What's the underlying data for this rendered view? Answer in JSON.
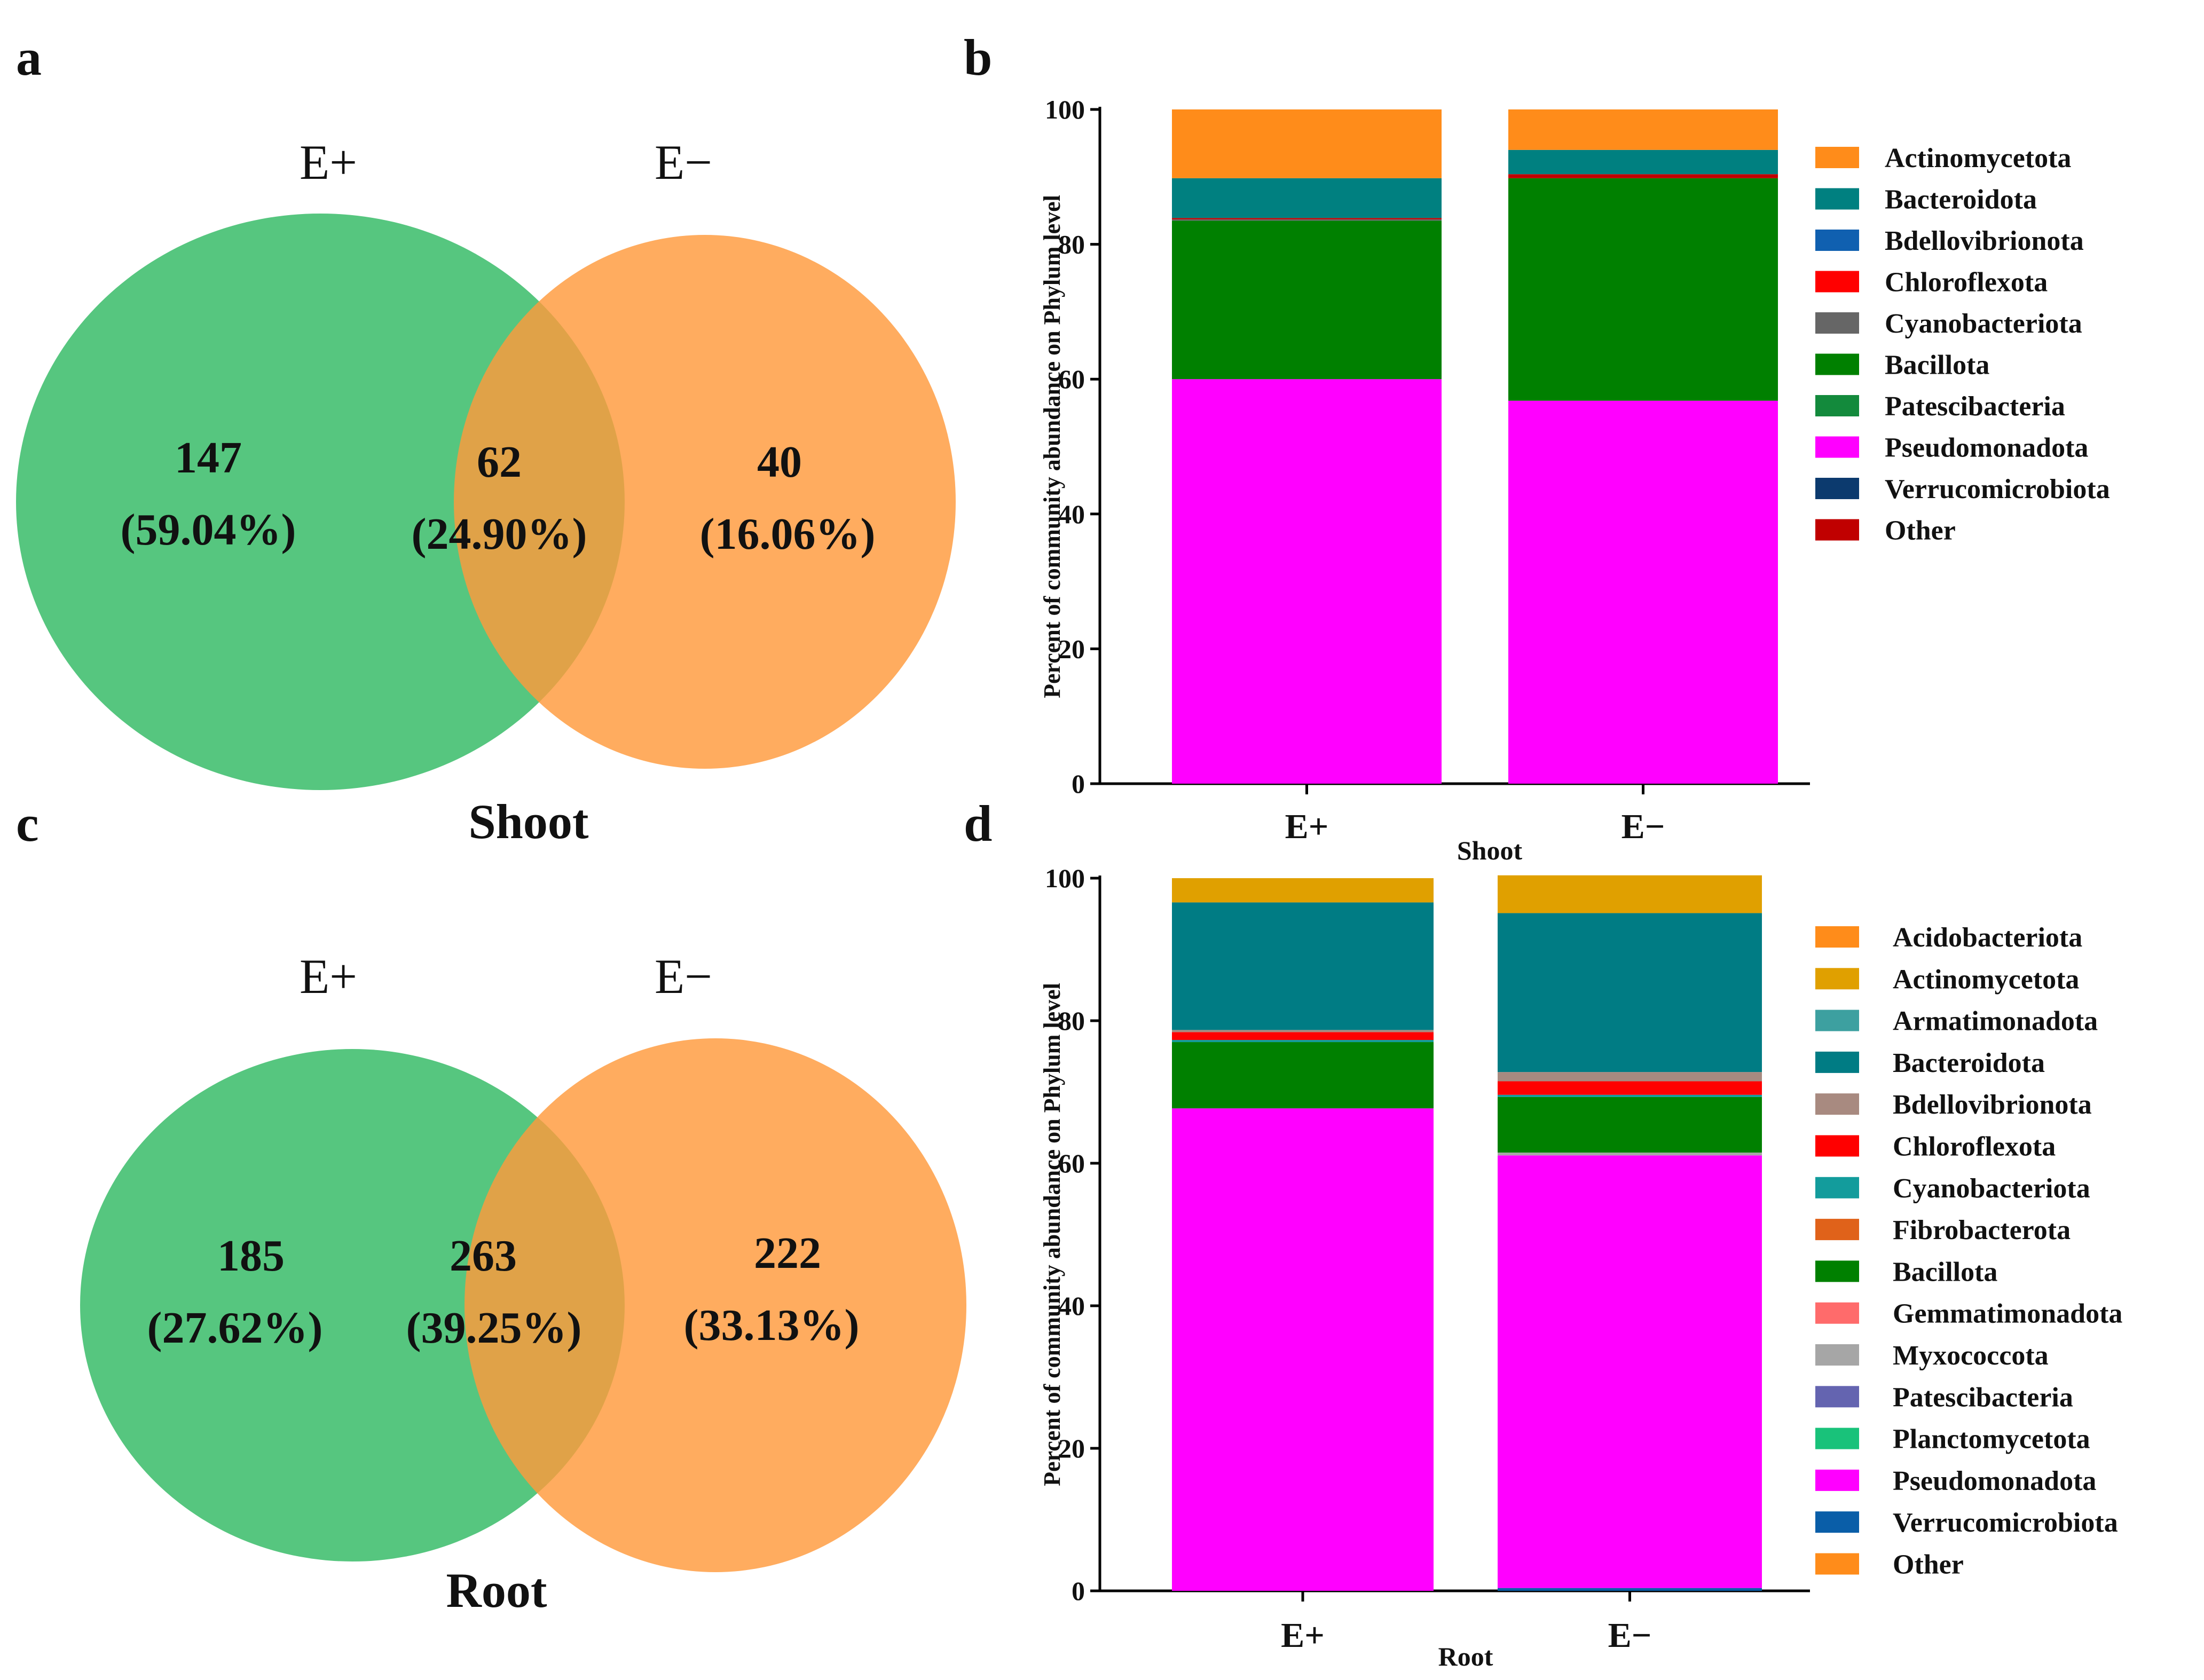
{
  "panels": {
    "a": {
      "letter": "a",
      "set_left": "E+",
      "set_right": "E−",
      "title": "Shoot",
      "left_only": {
        "count": "147",
        "pct": "(59.04%)"
      },
      "shared": {
        "count": "62",
        "pct": "(24.90%)"
      },
      "right_only": {
        "count": "40",
        "pct": "(16.06%)"
      }
    },
    "c": {
      "letter": "c",
      "set_left": "E+",
      "set_right": "E−",
      "title": "Root",
      "left_only": {
        "count": "185",
        "pct": "(27.62%)"
      },
      "shared": {
        "count": "263",
        "pct": "(39.25%)"
      },
      "right_only": {
        "count": "222",
        "pct": "(33.13%)"
      }
    }
  },
  "colors": {
    "venn_left": "#48c174",
    "venn_right": "#ff9a3c"
  },
  "chart_data": [
    {
      "panel": "b",
      "type": "bar",
      "stacked": true,
      "ylabel": "Percent of community abundance on Phylum level",
      "xlabel": "Shoot",
      "categories": [
        "E+",
        "E−"
      ],
      "ylim": [
        0,
        100
      ],
      "yticks": [
        0,
        20,
        40,
        60,
        80,
        100
      ],
      "legend": "right",
      "series": [
        {
          "name": "Pseudomonadota",
          "color": "#ff00ff",
          "values": [
            60,
            56.8
          ]
        },
        {
          "name": "Patescibacteria",
          "color": "#138a3c",
          "values": [
            0,
            0
          ]
        },
        {
          "name": "Bacillota",
          "color": "#008000",
          "values": [
            23.5,
            33
          ]
        },
        {
          "name": "Cyanobacteriota",
          "color": "#666666",
          "values": [
            0.2,
            0
          ]
        },
        {
          "name": "Chloroflexota",
          "color": "#ff0000",
          "values": [
            0,
            0
          ]
        },
        {
          "name": "Bdellovibrionota",
          "color": "#1060b0",
          "values": [
            0,
            0
          ]
        },
        {
          "name": "Verrucomicrobiota",
          "color": "#0c3a6e",
          "values": [
            0,
            0
          ]
        },
        {
          "name": "Other",
          "color": "#c00000",
          "values": [
            0.2,
            0.6
          ]
        },
        {
          "name": "Bacteroidota",
          "color": "#008080",
          "values": [
            5.9,
            3.6
          ]
        },
        {
          "name": "Actinomycetota",
          "color": "#ff8c1a",
          "values": [
            10.2,
            6
          ]
        }
      ],
      "legend_order": [
        "Actinomycetota",
        "Bacteroidota",
        "Bdellovibrionota",
        "Chloroflexota",
        "Cyanobacteriota",
        "Bacillota",
        "Patescibacteria",
        "Pseudomonadota",
        "Verrucomicrobiota",
        "Other"
      ]
    },
    {
      "panel": "d",
      "type": "bar",
      "stacked": true,
      "ylabel": "Percent of community abundance on Phylum level",
      "xlabel": "Root",
      "categories": [
        "E+",
        "E−"
      ],
      "ylim": [
        0,
        100
      ],
      "yticks": [
        0,
        20,
        40,
        60,
        80,
        100
      ],
      "legend": "right",
      "series": [
        {
          "name": "Verrucomicrobiota",
          "color": "#0a5ea8",
          "values": [
            0,
            0.4
          ]
        },
        {
          "name": "Pseudomonadota",
          "color": "#ff00ff",
          "values": [
            67.7,
            60.7
          ]
        },
        {
          "name": "Planctomycetota",
          "color": "#19c27a",
          "values": [
            0,
            0
          ]
        },
        {
          "name": "Patescibacteria",
          "color": "#6464b0",
          "values": [
            0,
            0
          ]
        },
        {
          "name": "Myxococcota",
          "color": "#a6a6a6",
          "values": [
            0,
            0.4
          ]
        },
        {
          "name": "Gemmatimonadota",
          "color": "#ff6b6b",
          "values": [
            0,
            0
          ]
        },
        {
          "name": "Bacillota",
          "color": "#008000",
          "values": [
            9.3,
            7.8
          ]
        },
        {
          "name": "Fibrobacterota",
          "color": "#e0621a",
          "values": [
            0,
            0
          ]
        },
        {
          "name": "Cyanobacteriota",
          "color": "#139c9c",
          "values": [
            0.3,
            0.3
          ]
        },
        {
          "name": "Chloroflexota",
          "color": "#ff0000",
          "values": [
            1.1,
            1.9
          ]
        },
        {
          "name": "Bdellovibrionota",
          "color": "#a88a80",
          "values": [
            0.3,
            1.3
          ]
        },
        {
          "name": "Bacteroidota",
          "color": "#007c84",
          "values": [
            17.9,
            22.3
          ]
        },
        {
          "name": "Armatimonadota",
          "color": "#3da0a0",
          "values": [
            0,
            0
          ]
        },
        {
          "name": "Actinomycetota",
          "color": "#e0a000",
          "values": [
            3.4,
            5.3
          ]
        },
        {
          "name": "Acidobacteriota",
          "color": "#ff8c1a",
          "values": [
            0,
            0
          ]
        },
        {
          "name": "Other",
          "color": "#ff8c1a",
          "values": [
            0,
            0
          ]
        }
      ],
      "legend_order": [
        "Acidobacteriota",
        "Actinomycetota",
        "Armatimonadota",
        "Bacteroidota",
        "Bdellovibrionota",
        "Chloroflexota",
        "Cyanobacteriota",
        "Fibrobacterota",
        "Bacillota",
        "Gemmatimonadota",
        "Myxococcota",
        "Patescibacteria",
        "Planctomycetota",
        "Pseudomonadota",
        "Verrucomicrobiota",
        "Other"
      ]
    }
  ]
}
